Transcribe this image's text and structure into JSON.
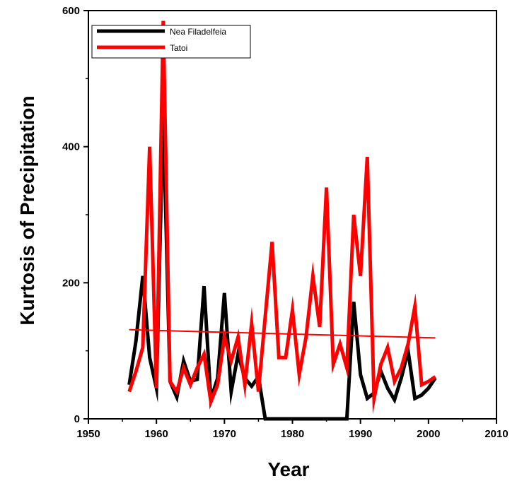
{
  "chart_data": {
    "type": "line",
    "xlabel": "Year",
    "ylabel": "Kurtosis of Precipitation",
    "xlim": [
      1950,
      2010
    ],
    "ylim": [
      0,
      600
    ],
    "x_ticks": [
      1950,
      1960,
      1970,
      1980,
      1990,
      2000,
      2010
    ],
    "y_ticks": [
      0,
      200,
      400,
      600
    ],
    "grid": false,
    "legend_position": "top-left",
    "series": [
      {
        "name": "Nea Filadelfeia",
        "color": "#000000",
        "x": [
          1956,
          1957,
          1958,
          1959,
          1960,
          1961,
          1962,
          1963,
          1964,
          1965,
          1966,
          1967,
          1968,
          1969,
          1970,
          1971,
          1972,
          1973,
          1974,
          1975,
          1976,
          1977,
          1978,
          1979,
          1980,
          1981,
          1982,
          1983,
          1984,
          1985,
          1986,
          1987,
          1988,
          1989,
          1990,
          1991,
          1992,
          1993,
          1994,
          1995,
          1996,
          1997,
          1998,
          1999,
          2000,
          2001
        ],
        "y": [
          50,
          115,
          210,
          90,
          45,
          450,
          55,
          32,
          85,
          55,
          58,
          195,
          28,
          60,
          185,
          40,
          95,
          60,
          48,
          62,
          0,
          0,
          0,
          0,
          0,
          0,
          0,
          0,
          0,
          0,
          0,
          0,
          0,
          172,
          65,
          30,
          38,
          70,
          45,
          28,
          60,
          100,
          30,
          35,
          45,
          60
        ]
      },
      {
        "name": "Tatoi",
        "color": "#ff0000",
        "x": [
          1956,
          1957,
          1958,
          1959,
          1960,
          1961,
          1962,
          1963,
          1964,
          1965,
          1966,
          1967,
          1968,
          1969,
          1970,
          1971,
          1972,
          1973,
          1974,
          1975,
          1976,
          1977,
          1978,
          1979,
          1980,
          1981,
          1982,
          1983,
          1984,
          1985,
          1986,
          1987,
          1988,
          1989,
          1990,
          1991,
          1992,
          1993,
          1994,
          1995,
          1996,
          1997,
          1998,
          1999,
          2000,
          2001
        ],
        "y": [
          40,
          70,
          105,
          400,
          45,
          585,
          55,
          40,
          75,
          50,
          75,
          95,
          25,
          50,
          120,
          85,
          120,
          50,
          140,
          40,
          150,
          260,
          90,
          90,
          160,
          65,
          120,
          210,
          135,
          340,
          80,
          110,
          75,
          300,
          210,
          385,
          30,
          80,
          105,
          55,
          75,
          110,
          165,
          50,
          55,
          62
        ]
      }
    ],
    "trendline": {
      "color": "#ff0000",
      "x": [
        1956,
        2001
      ],
      "y": [
        131,
        119
      ]
    }
  }
}
